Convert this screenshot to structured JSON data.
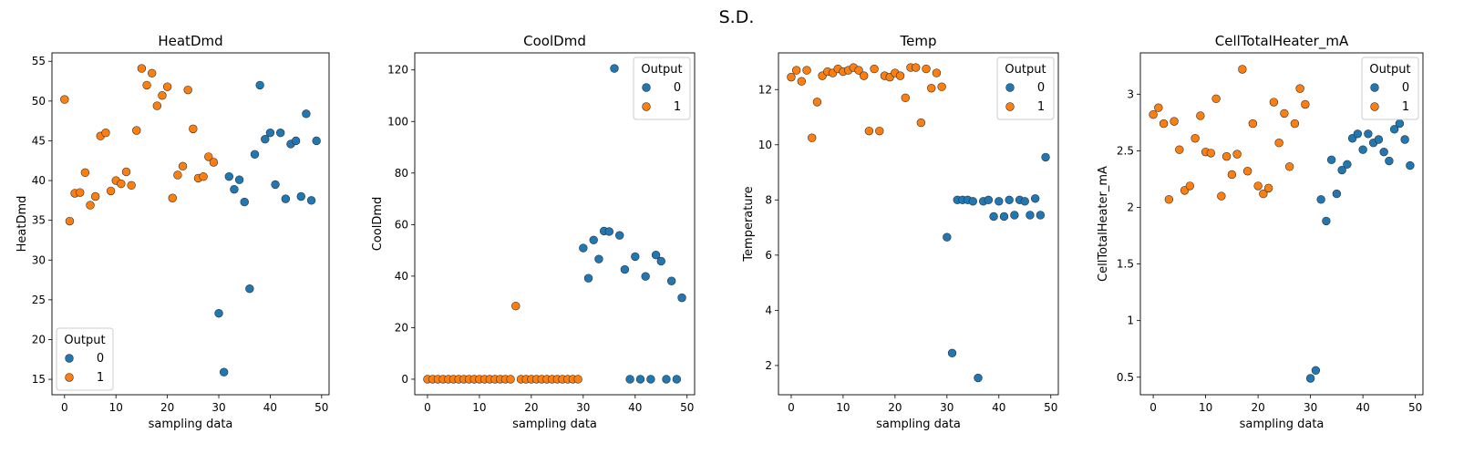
{
  "figure": {
    "title": "S.D."
  },
  "colors": {
    "class_0": "#1f77b4",
    "class_1": "#ff7f0e"
  },
  "chart_data": [
    {
      "type": "scatter",
      "title": "HeatDmd",
      "xlabel": "sampling data",
      "ylabel": "HeatDmd",
      "xlim": [
        -2.45,
        51.45
      ],
      "ylim": [
        13.06,
        56.06
      ],
      "xticks": [
        0,
        10,
        20,
        30,
        40,
        50
      ],
      "yticks": [
        15,
        20,
        25,
        30,
        35,
        40,
        45,
        50,
        55
      ],
      "legend": {
        "title": "Output",
        "entries": [
          "0",
          "1"
        ],
        "loc": "lower left"
      },
      "series": [
        {
          "name": "0",
          "x": [
            30,
            31,
            32,
            33,
            34,
            35,
            36,
            37,
            38,
            39,
            40,
            41,
            42,
            43,
            44,
            45,
            46,
            47,
            48,
            49
          ],
          "y": [
            23.3,
            15.9,
            40.5,
            38.9,
            40.1,
            37.3,
            26.4,
            43.3,
            52.0,
            45.2,
            46.0,
            39.5,
            46.0,
            37.7,
            44.6,
            45.0,
            38.0,
            48.4,
            37.5,
            45.0
          ]
        },
        {
          "name": "1",
          "x": [
            0,
            1,
            2,
            3,
            4,
            5,
            6,
            7,
            8,
            9,
            10,
            11,
            12,
            13,
            14,
            15,
            16,
            17,
            18,
            19,
            20,
            21,
            22,
            23,
            24,
            25,
            26,
            27,
            28,
            29
          ],
          "y": [
            50.2,
            34.9,
            38.4,
            38.5,
            41.0,
            36.9,
            38.0,
            45.6,
            46.0,
            38.7,
            40.0,
            39.6,
            41.1,
            39.4,
            46.3,
            54.1,
            52.0,
            53.5,
            49.4,
            50.7,
            51.8,
            37.8,
            40.7,
            41.8,
            51.4,
            46.5,
            40.3,
            40.5,
            43.0,
            42.3
          ]
        }
      ]
    },
    {
      "type": "scatter",
      "title": "CoolDmd",
      "xlabel": "sampling data",
      "ylabel": "CoolDmd",
      "xlim": [
        -2.45,
        51.45
      ],
      "ylim": [
        -6.03,
        126.63
      ],
      "xticks": [
        0,
        10,
        20,
        30,
        40,
        50
      ],
      "yticks": [
        0,
        20,
        40,
        60,
        80,
        100,
        120
      ],
      "legend": {
        "title": "Output",
        "entries": [
          "0",
          "1"
        ],
        "loc": "upper right"
      },
      "series": [
        {
          "name": "0",
          "x": [
            30,
            31,
            32,
            33,
            34,
            35,
            36,
            37,
            38,
            39,
            40,
            41,
            42,
            43,
            44,
            45,
            46,
            47,
            48,
            49
          ],
          "y": [
            50.9,
            39.2,
            54.0,
            46.6,
            57.5,
            57.3,
            120.6,
            55.8,
            42.6,
            0,
            47.6,
            0,
            39.9,
            0,
            48.2,
            45.8,
            0,
            38.1,
            0,
            31.6
          ]
        },
        {
          "name": "1",
          "x": [
            0,
            1,
            2,
            3,
            4,
            5,
            6,
            7,
            8,
            9,
            10,
            11,
            12,
            13,
            14,
            15,
            16,
            17,
            18,
            19,
            20,
            21,
            22,
            23,
            24,
            25,
            26,
            27,
            28,
            29
          ],
          "y": [
            0,
            0,
            0,
            0,
            0,
            0,
            0,
            0,
            0,
            0,
            0,
            0,
            0,
            0,
            0,
            0,
            0,
            28.4,
            0,
            0,
            0,
            0,
            0,
            0,
            0,
            0,
            0,
            0,
            0,
            0
          ]
        }
      ]
    },
    {
      "type": "scatter",
      "title": "Temp",
      "xlabel": "sampling data",
      "ylabel": "Temperature",
      "xlim": [
        -2.45,
        51.45
      ],
      "ylim": [
        0.94,
        13.33
      ],
      "xticks": [
        0,
        10,
        20,
        30,
        40,
        50
      ],
      "yticks": [
        2,
        4,
        6,
        8,
        10,
        12
      ],
      "legend": {
        "title": "Output",
        "entries": [
          "0",
          "1"
        ],
        "loc": "upper right"
      },
      "series": [
        {
          "name": "0",
          "x": [
            30,
            31,
            32,
            33,
            34,
            35,
            36,
            37,
            38,
            39,
            40,
            41,
            42,
            43,
            44,
            45,
            46,
            47,
            48,
            49
          ],
          "y": [
            6.65,
            2.45,
            8.0,
            8.0,
            8.0,
            7.95,
            1.55,
            7.95,
            8.0,
            7.4,
            7.95,
            7.4,
            8.0,
            7.45,
            8.0,
            7.95,
            7.45,
            8.05,
            7.45,
            9.55
          ]
        },
        {
          "name": "1",
          "x": [
            0,
            1,
            2,
            3,
            4,
            5,
            6,
            7,
            8,
            9,
            10,
            11,
            12,
            13,
            14,
            15,
            16,
            17,
            18,
            19,
            20,
            21,
            22,
            23,
            24,
            25,
            26,
            27,
            28,
            29
          ],
          "y": [
            12.45,
            12.7,
            12.3,
            12.7,
            10.25,
            11.55,
            12.5,
            12.65,
            12.6,
            12.75,
            12.65,
            12.7,
            12.8,
            12.7,
            12.5,
            10.5,
            12.75,
            10.5,
            12.5,
            12.45,
            12.6,
            12.5,
            11.7,
            12.8,
            12.8,
            10.8,
            12.75,
            12.05,
            12.6,
            12.1
          ]
        }
      ]
    },
    {
      "type": "scatter",
      "title": "CellTotalHeater_mA",
      "xlabel": "sampling data",
      "ylabel": "CellTotalHeater_mA",
      "xlim": [
        -2.45,
        51.45
      ],
      "ylim": [
        0.345,
        3.365
      ],
      "xticks": [
        0,
        10,
        20,
        30,
        40,
        50
      ],
      "yticks": [
        0.5,
        1.0,
        1.5,
        2.0,
        2.5,
        3.0
      ],
      "legend": {
        "title": "Output",
        "entries": [
          "0",
          "1"
        ],
        "loc": "upper right"
      },
      "series": [
        {
          "name": "0",
          "x": [
            30,
            31,
            32,
            33,
            34,
            35,
            36,
            37,
            38,
            39,
            40,
            41,
            42,
            43,
            44,
            45,
            46,
            47,
            48,
            49
          ],
          "y": [
            0.49,
            0.56,
            2.07,
            1.88,
            2.42,
            2.12,
            2.33,
            2.38,
            2.61,
            2.65,
            2.51,
            2.65,
            2.57,
            2.6,
            2.49,
            2.41,
            2.69,
            2.74,
            2.6,
            2.37
          ]
        },
        {
          "name": "1",
          "x": [
            0,
            1,
            2,
            3,
            4,
            5,
            6,
            7,
            8,
            9,
            10,
            11,
            12,
            13,
            14,
            15,
            16,
            17,
            18,
            19,
            20,
            21,
            22,
            23,
            24,
            25,
            26,
            27,
            28,
            29
          ],
          "y": [
            2.82,
            2.88,
            2.74,
            2.07,
            2.76,
            2.51,
            2.15,
            2.19,
            2.61,
            2.81,
            2.49,
            2.48,
            2.96,
            2.1,
            2.45,
            2.29,
            2.47,
            3.22,
            2.32,
            2.74,
            2.19,
            2.12,
            2.17,
            2.93,
            2.57,
            2.83,
            2.36,
            2.74,
            3.05,
            2.91
          ]
        }
      ]
    }
  ]
}
